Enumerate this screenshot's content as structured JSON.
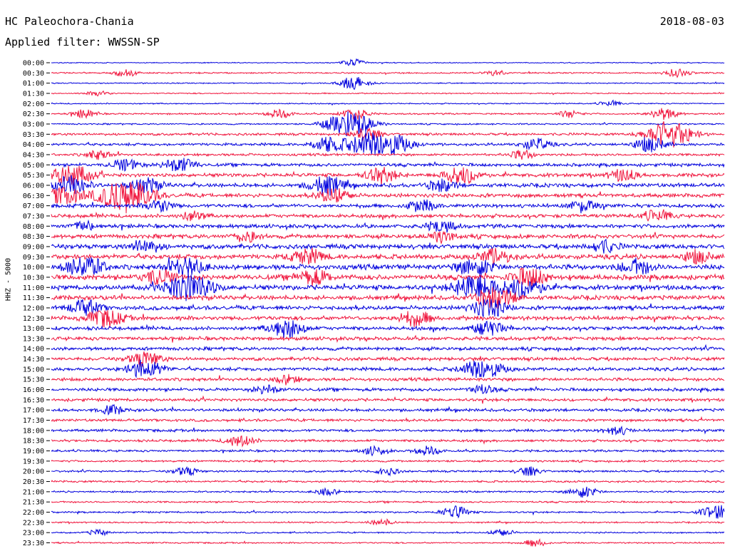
{
  "header": {
    "station": "HC Paleochora-Chania",
    "date": "2018-08-03",
    "filter": "Applied filter: WWSSN-SP",
    "channel": "HHZ - 5000"
  },
  "colors": {
    "blue": "#0000dd",
    "red": "#f0143c"
  },
  "chart_data": {
    "type": "seismogram-helicorder",
    "row_labels": [
      "00:00",
      "00:30",
      "01:00",
      "01:30",
      "02:00",
      "02:30",
      "03:00",
      "03:30",
      "04:00",
      "04:30",
      "05:00",
      "05:30",
      "06:00",
      "06:30",
      "07:00",
      "07:30",
      "08:00",
      "08:30",
      "09:00",
      "09:30",
      "10:00",
      "10:30",
      "11:00",
      "11:30",
      "12:00",
      "12:30",
      "13:00",
      "13:30",
      "14:00",
      "14:30",
      "15:00",
      "15:30",
      "16:00",
      "16:30",
      "17:00",
      "17:30",
      "18:00",
      "18:30",
      "19:00",
      "19:30",
      "20:00",
      "20:30",
      "21:00",
      "21:30",
      "22:00",
      "22:30",
      "23:00",
      "23:30"
    ],
    "row_colors": [
      "blue",
      "red",
      "blue",
      "red",
      "blue",
      "red",
      "blue",
      "red",
      "blue",
      "red",
      "blue",
      "red",
      "blue",
      "red",
      "blue",
      "red",
      "blue",
      "red",
      "blue",
      "red",
      "blue",
      "red",
      "blue",
      "red",
      "blue",
      "red",
      "blue",
      "red",
      "blue",
      "red",
      "blue",
      "red",
      "blue",
      "red",
      "blue",
      "red",
      "blue",
      "red",
      "blue",
      "red",
      "blue",
      "red",
      "blue",
      "red",
      "blue",
      "red",
      "blue",
      "red"
    ],
    "noise_level": [
      0.8,
      1.2,
      0.9,
      1,
      1,
      1.3,
      1.2,
      2,
      2.2,
      2,
      2.6,
      3,
      3.2,
      3.2,
      3,
      3,
      3.2,
      3.4,
      3.8,
      4,
      4.2,
      4.2,
      4,
      3.6,
      3.4,
      3.4,
      3,
      3,
      2.8,
      2.8,
      2.8,
      2.6,
      2.6,
      2.4,
      2.4,
      2.2,
      2.2,
      2,
      1.8,
      1.6,
      1.6,
      1.6,
      1.4,
      1.4,
      1.4,
      1.2,
      1.2,
      1.2
    ],
    "events": [
      {
        "row": 0,
        "pos": 0.45,
        "amp": 5
      },
      {
        "row": 1,
        "pos": 0.11,
        "amp": 5
      },
      {
        "row": 1,
        "pos": 0.66,
        "amp": 4
      },
      {
        "row": 1,
        "pos": 0.93,
        "amp": 6
      },
      {
        "row": 2,
        "pos": 0.45,
        "amp": 9
      },
      {
        "row": 3,
        "pos": 0.07,
        "amp": 4
      },
      {
        "row": 4,
        "pos": 0.83,
        "amp": 4
      },
      {
        "row": 5,
        "pos": 0.05,
        "amp": 6
      },
      {
        "row": 5,
        "pos": 0.34,
        "amp": 6
      },
      {
        "row": 5,
        "pos": 0.45,
        "amp": 8
      },
      {
        "row": 5,
        "pos": 0.77,
        "amp": 5
      },
      {
        "row": 5,
        "pos": 0.91,
        "amp": 8
      },
      {
        "row": 6,
        "pos": 0.443,
        "amp": 18
      },
      {
        "row": 7,
        "pos": 0.468,
        "amp": 8
      },
      {
        "row": 7,
        "pos": 0.918,
        "amp": 18
      },
      {
        "row": 8,
        "pos": 0.41,
        "amp": 10
      },
      {
        "row": 8,
        "pos": 0.47,
        "amp": 16
      },
      {
        "row": 8,
        "pos": 0.51,
        "amp": 12
      },
      {
        "row": 8,
        "pos": 0.72,
        "amp": 8
      },
      {
        "row": 8,
        "pos": 0.89,
        "amp": 10
      },
      {
        "row": 9,
        "pos": 0.07,
        "amp": 6
      },
      {
        "row": 9,
        "pos": 0.7,
        "amp": 6
      },
      {
        "row": 10,
        "pos": 0.11,
        "amp": 8
      },
      {
        "row": 10,
        "pos": 0.19,
        "amp": 10
      },
      {
        "row": 11,
        "pos": 0.03,
        "amp": 14
      },
      {
        "row": 11,
        "pos": 0.49,
        "amp": 10
      },
      {
        "row": 11,
        "pos": 0.61,
        "amp": 12
      },
      {
        "row": 11,
        "pos": 0.85,
        "amp": 8
      },
      {
        "row": 12,
        "pos": 0.03,
        "amp": 12
      },
      {
        "row": 12,
        "pos": 0.14,
        "amp": 10
      },
      {
        "row": 12,
        "pos": 0.41,
        "amp": 12
      },
      {
        "row": 12,
        "pos": 0.58,
        "amp": 8
      },
      {
        "row": 13,
        "pos": 0.02,
        "amp": 12
      },
      {
        "row": 13,
        "pos": 0.11,
        "amp": 22
      },
      {
        "row": 13,
        "pos": 0.42,
        "amp": 10
      },
      {
        "row": 14,
        "pos": 0.16,
        "amp": 8
      },
      {
        "row": 14,
        "pos": 0.55,
        "amp": 8
      },
      {
        "row": 14,
        "pos": 0.79,
        "amp": 8
      },
      {
        "row": 15,
        "pos": 0.21,
        "amp": 6
      },
      {
        "row": 15,
        "pos": 0.9,
        "amp": 8
      },
      {
        "row": 16,
        "pos": 0.05,
        "amp": 6
      },
      {
        "row": 16,
        "pos": 0.58,
        "amp": 8
      },
      {
        "row": 17,
        "pos": 0.29,
        "amp": 7
      },
      {
        "row": 17,
        "pos": 0.58,
        "amp": 7
      },
      {
        "row": 18,
        "pos": 0.14,
        "amp": 9
      },
      {
        "row": 18,
        "pos": 0.82,
        "amp": 8
      },
      {
        "row": 19,
        "pos": 0.38,
        "amp": 10
      },
      {
        "row": 19,
        "pos": 0.66,
        "amp": 10
      },
      {
        "row": 19,
        "pos": 0.96,
        "amp": 8
      },
      {
        "row": 20,
        "pos": 0.05,
        "amp": 14
      },
      {
        "row": 20,
        "pos": 0.2,
        "amp": 12
      },
      {
        "row": 20,
        "pos": 0.63,
        "amp": 12
      },
      {
        "row": 20,
        "pos": 0.87,
        "amp": 10
      },
      {
        "row": 21,
        "pos": 0.16,
        "amp": 10
      },
      {
        "row": 21,
        "pos": 0.39,
        "amp": 10
      },
      {
        "row": 21,
        "pos": 0.71,
        "amp": 12
      },
      {
        "row": 22,
        "pos": 0.205,
        "amp": 18
      },
      {
        "row": 22,
        "pos": 0.63,
        "amp": 16
      },
      {
        "row": 22,
        "pos": 0.7,
        "amp": 14
      },
      {
        "row": 23,
        "pos": 0.66,
        "amp": 14
      },
      {
        "row": 24,
        "pos": 0.65,
        "amp": 12
      },
      {
        "row": 24,
        "pos": 0.05,
        "amp": 10
      },
      {
        "row": 25,
        "pos": 0.08,
        "amp": 12
      },
      {
        "row": 25,
        "pos": 0.54,
        "amp": 10
      },
      {
        "row": 26,
        "pos": 0.35,
        "amp": 12
      },
      {
        "row": 26,
        "pos": 0.65,
        "amp": 10
      },
      {
        "row": 29,
        "pos": 0.14,
        "amp": 10
      },
      {
        "row": 30,
        "pos": 0.14,
        "amp": 12
      },
      {
        "row": 30,
        "pos": 0.64,
        "amp": 14
      },
      {
        "row": 31,
        "pos": 0.35,
        "amp": 6
      },
      {
        "row": 32,
        "pos": 0.32,
        "amp": 6
      },
      {
        "row": 32,
        "pos": 0.64,
        "amp": 6
      },
      {
        "row": 34,
        "pos": 0.09,
        "amp": 6
      },
      {
        "row": 36,
        "pos": 0.84,
        "amp": 6
      },
      {
        "row": 37,
        "pos": 0.28,
        "amp": 8
      },
      {
        "row": 38,
        "pos": 0.48,
        "amp": 6
      },
      {
        "row": 38,
        "pos": 0.56,
        "amp": 6
      },
      {
        "row": 40,
        "pos": 0.2,
        "amp": 6
      },
      {
        "row": 40,
        "pos": 0.5,
        "amp": 5
      },
      {
        "row": 40,
        "pos": 0.71,
        "amp": 6
      },
      {
        "row": 42,
        "pos": 0.41,
        "amp": 5
      },
      {
        "row": 42,
        "pos": 0.79,
        "amp": 8
      },
      {
        "row": 44,
        "pos": 0.6,
        "amp": 8
      },
      {
        "row": 44,
        "pos": 0.99,
        "amp": 10
      },
      {
        "row": 45,
        "pos": 0.49,
        "amp": 5
      },
      {
        "row": 46,
        "pos": 0.07,
        "amp": 4
      },
      {
        "row": 46,
        "pos": 0.67,
        "amp": 5
      },
      {
        "row": 47,
        "pos": 0.72,
        "amp": 5
      }
    ]
  }
}
